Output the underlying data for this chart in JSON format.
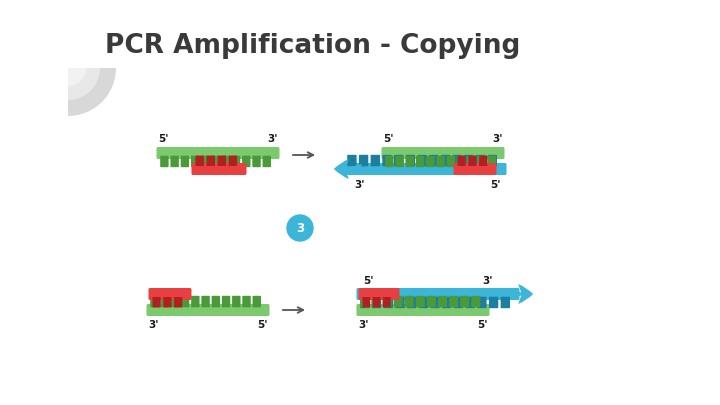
{
  "title": "PCR Amplification - Copying",
  "title_color": "#3a3a3a",
  "title_fontsize": 19,
  "bg_color": "#ffffff",
  "green_light": "#7dc96e",
  "green_dark": "#4a9a3a",
  "red_light": "#e84040",
  "red_dark": "#b02020",
  "blue_light": "#3bb5d8",
  "blue_dark": "#1a7fa0",
  "circle_color": "#3bb5d8",
  "arrow_color": "#555555",
  "label_color": "#1a1a1a",
  "label_fontsize": 7.5,
  "corner_color": "#cccccc"
}
